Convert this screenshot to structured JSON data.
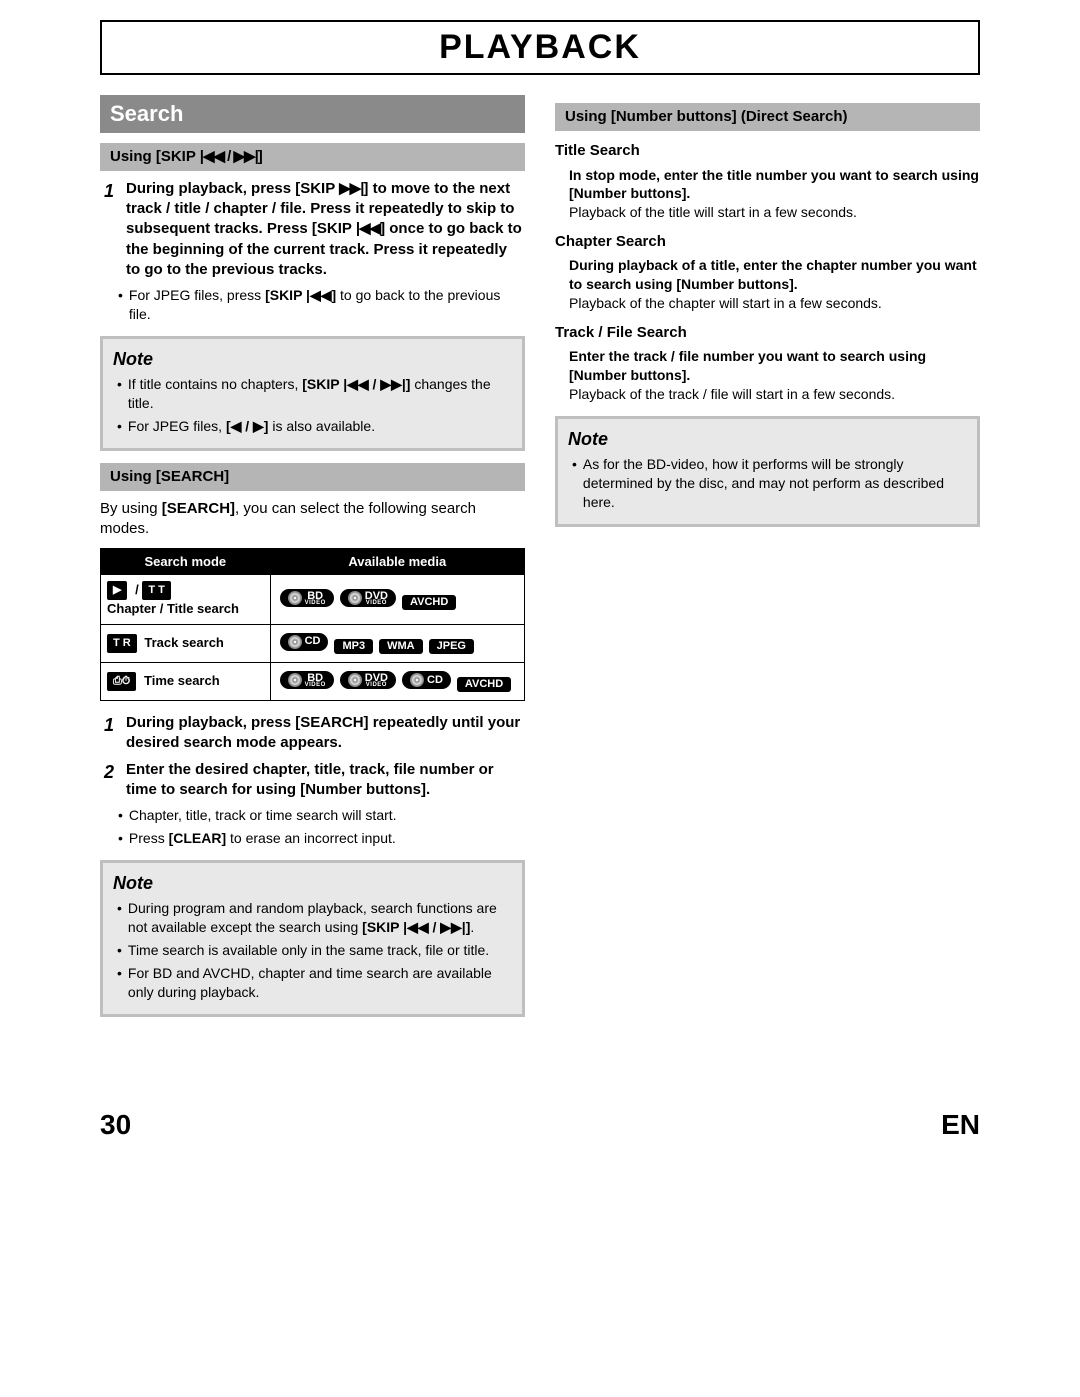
{
  "page": {
    "title": "PLAYBACK",
    "number": "30",
    "lang": "EN"
  },
  "left": {
    "section": "Search",
    "sub1": {
      "title_prefix": "Using [SKIP ",
      "title_icons": "|◀◀ / ▶▶|",
      "title_suffix": "]",
      "step1_num": "1",
      "step1_a": "During playback, press [SKIP ",
      "step1_icon1": "▶▶|",
      "step1_b": "] to move to the next track / title / chapter / file. Press it repeatedly to skip to subsequent tracks. Press [SKIP ",
      "step1_icon2": "|◀◀",
      "step1_c": "] once to go back to the beginning of the current track. Press it repeatedly to go to the previous tracks.",
      "bullet1_a": "For JPEG files, press ",
      "bullet1_b": "[SKIP |◀◀]",
      "bullet1_c": " to go back to the previous file."
    },
    "note1": {
      "title": "Note",
      "b1_a": "If title contains no chapters, ",
      "b1_b": "[SKIP |◀◀ / ▶▶|]",
      "b1_c": " changes the title.",
      "b2_a": "For JPEG files, ",
      "b2_b": "[◀ / ▶]",
      "b2_c": " is also available."
    },
    "sub2": {
      "title": "Using [SEARCH]",
      "intro_a": "By using ",
      "intro_b": "[SEARCH]",
      "intro_c": ", you can select the following search modes."
    },
    "table": {
      "h1": "Search mode",
      "h2": "Available media",
      "r1": {
        "icon1": "▶",
        "sep": "/",
        "icon2": "T T",
        "label": "Chapter / Title search",
        "badges": [
          {
            "type": "disc",
            "top": "BD",
            "sub": "VIDEO"
          },
          {
            "type": "disc",
            "top": "DVD",
            "sub": "VIDEO"
          },
          {
            "type": "square",
            "top": "AVCHD"
          }
        ]
      },
      "r2": {
        "icon": "T R",
        "label": "Track search",
        "badges": [
          {
            "type": "disc",
            "top": "CD"
          },
          {
            "type": "square",
            "top": "MP3"
          },
          {
            "type": "square",
            "top": "WMA"
          },
          {
            "type": "square",
            "top": "JPEG"
          }
        ]
      },
      "r3": {
        "icon": "⎙⏱",
        "label": "Time search",
        "badges": [
          {
            "type": "disc",
            "top": "BD",
            "sub": "VIDEO"
          },
          {
            "type": "disc",
            "top": "DVD",
            "sub": "VIDEO"
          },
          {
            "type": "disc",
            "top": "CD"
          },
          {
            "type": "square",
            "top": "AVCHD"
          }
        ]
      }
    },
    "steps2": {
      "s1_num": "1",
      "s1": "During playback, press [SEARCH] repeatedly until your desired search mode appears.",
      "s2_num": "2",
      "s2": "Enter the desired chapter, title, track, file number or time to search for using [Number buttons].",
      "b1": "Chapter, title, track or time search will start.",
      "b2_a": "Press ",
      "b2_b": "[CLEAR]",
      "b2_c": " to erase an incorrect input."
    },
    "note2": {
      "title": "Note",
      "b1_a": "During program and random playback, search functions are not available except the search using ",
      "b1_b": "[SKIP |◀◀ / ▶▶|]",
      "b1_c": ".",
      "b2": "Time search is available only in the same track, file or title.",
      "b3": "For BD and AVCHD, chapter and time search are available only during playback."
    }
  },
  "right": {
    "sub": {
      "title": "Using [Number buttons] (Direct Search)"
    },
    "title_search": {
      "h": "Title Search",
      "b": "In stop mode, enter the title number you want to search using [Number buttons].",
      "p": "Playback of the title will start in a few seconds."
    },
    "chapter_search": {
      "h": "Chapter Search",
      "b": "During playback of a title, enter the chapter number you want to search using [Number buttons].",
      "p": "Playback of the chapter will start in a few seconds."
    },
    "track_search": {
      "h": "Track / File Search",
      "b": "Enter the track / file number you want to search using [Number buttons].",
      "p": "Playback of the track / file will start in a few seconds."
    },
    "note": {
      "title": "Note",
      "b1": "As for the BD-video, how it performs will be strongly determined by the disc, and may not perform as described here."
    }
  }
}
